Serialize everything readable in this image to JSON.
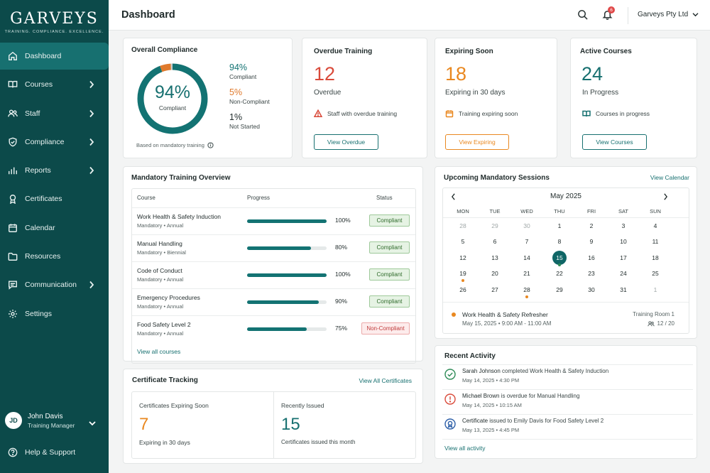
{
  "brand": {
    "name": "GARVEYS",
    "tagline": "TRAINING. COMPLIANCE. EXCELLENCE."
  },
  "nav": [
    {
      "label": "Dashboard",
      "icon": "home-icon",
      "active": true,
      "has_children": false
    },
    {
      "label": "Courses",
      "icon": "book-icon",
      "active": false,
      "has_children": true
    },
    {
      "label": "Staff",
      "icon": "users-icon",
      "active": false,
      "has_children": true
    },
    {
      "label": "Compliance",
      "icon": "shield-icon",
      "active": false,
      "has_children": true
    },
    {
      "label": "Reports",
      "icon": "bar-chart-icon",
      "active": false,
      "has_children": true
    },
    {
      "label": "Certificates",
      "icon": "award-icon",
      "active": false,
      "has_children": false
    },
    {
      "label": "Calendar",
      "icon": "calendar-icon",
      "active": false,
      "has_children": false
    },
    {
      "label": "Resources",
      "icon": "folder-icon",
      "active": false,
      "has_children": false
    },
    {
      "label": "Communication",
      "icon": "message-icon",
      "active": false,
      "has_children": true
    },
    {
      "label": "Settings",
      "icon": "gear-icon",
      "active": false,
      "has_children": false
    }
  ],
  "user": {
    "initials": "JD",
    "name": "John Davis",
    "role": "Training Manager"
  },
  "help_label": "Help & Support",
  "header": {
    "title": "Dashboard",
    "notification_count": "6",
    "company": "Garveys Pty Ltd"
  },
  "compliance": {
    "title": "Overall Compliance",
    "center_value": "94%",
    "center_label": "Compliant",
    "compliant_fraction": 0.94,
    "noncompliant_fraction": 0.05,
    "notstarted_fraction": 0.01,
    "legend": [
      {
        "value": "94%",
        "label": "Compliant",
        "color": "#137373"
      },
      {
        "value": "5%",
        "label": "Non-Compliant",
        "color": "#e07a2c"
      },
      {
        "value": "1%",
        "label": "Not Started",
        "color": "#1f2a2a"
      }
    ],
    "footnote": "Based on mandatory training"
  },
  "stats": [
    {
      "title": "Overdue Training",
      "value": "12",
      "label": "Overdue",
      "note": "Staff with overdue training",
      "note_icon": "warning-icon",
      "button": "View Overdue",
      "color": "#d94a3a"
    },
    {
      "title": "Expiring Soon",
      "value": "18",
      "label": "Expiring in 30 days",
      "note": "Training expiring soon",
      "note_icon": "calendar-icon",
      "button": "View Expiring",
      "color": "#e98820"
    },
    {
      "title": "Active Courses",
      "value": "24",
      "label": "In Progress",
      "note": "Courses in progress",
      "note_icon": "book-icon",
      "button": "View Courses",
      "color": "#177070"
    }
  ],
  "training": {
    "title": "Mandatory Training Overview",
    "columns": [
      "Course",
      "Progress",
      "Status"
    ],
    "rows": [
      {
        "name": "Work Health & Safety Induction",
        "sub": "Mandatory • Annual",
        "progress": 100,
        "pct_label": "100%",
        "status": "Compliant",
        "ok": true
      },
      {
        "name": "Manual Handling",
        "sub": "Mandatory • Biennial",
        "progress": 80,
        "pct_label": "80%",
        "status": "Compliant",
        "ok": true
      },
      {
        "name": "Code of Conduct",
        "sub": "Mandatory • Annual",
        "progress": 100,
        "pct_label": "100%",
        "status": "Compliant",
        "ok": true
      },
      {
        "name": "Emergency Procedures",
        "sub": "Mandatory • Annual",
        "progress": 90,
        "pct_label": "90%",
        "status": "Compliant",
        "ok": true
      },
      {
        "name": "Food Safety Level 2",
        "sub": "Mandatory • Annual",
        "progress": 75,
        "pct_label": "75%",
        "status": "Non-Compliant",
        "ok": false
      }
    ],
    "view_all": "View all courses"
  },
  "certificates": {
    "title": "Certificate Tracking",
    "view_all": "View All Certificates",
    "expiring": {
      "title": "Certificates Expiring Soon",
      "value": "7",
      "label": "Expiring in 30 days"
    },
    "issued": {
      "title": "Recently Issued",
      "value": "15",
      "label": "Certificates issued this month"
    }
  },
  "sessions": {
    "title": "Upcoming Mandatory Sessions",
    "view_calendar": "View Calendar",
    "month": "May 2025",
    "weekdays": [
      "MON",
      "TUE",
      "WED",
      "THU",
      "FRI",
      "SAT",
      "SUN"
    ],
    "weeks": [
      [
        {
          "d": "28",
          "muted": true
        },
        {
          "d": "29",
          "muted": true
        },
        {
          "d": "30",
          "muted": true
        },
        {
          "d": "1"
        },
        {
          "d": "2"
        },
        {
          "d": "3"
        },
        {
          "d": "4"
        }
      ],
      [
        {
          "d": "5"
        },
        {
          "d": "6"
        },
        {
          "d": "7"
        },
        {
          "d": "8"
        },
        {
          "d": "9"
        },
        {
          "d": "10"
        },
        {
          "d": "11"
        }
      ],
      [
        {
          "d": "12"
        },
        {
          "d": "13"
        },
        {
          "d": "14"
        },
        {
          "d": "15",
          "today": true,
          "dot": "#2e8b57"
        },
        {
          "d": "16"
        },
        {
          "d": "17"
        },
        {
          "d": "18"
        }
      ],
      [
        {
          "d": "19",
          "dot": "#e98820"
        },
        {
          "d": "20"
        },
        {
          "d": "21"
        },
        {
          "d": "22"
        },
        {
          "d": "23"
        },
        {
          "d": "24"
        },
        {
          "d": "25"
        }
      ],
      [
        {
          "d": "26"
        },
        {
          "d": "27"
        },
        {
          "d": "28",
          "dot": "#e98820"
        },
        {
          "d": "29"
        },
        {
          "d": "30"
        },
        {
          "d": "31"
        },
        {
          "d": "1",
          "muted": true
        }
      ]
    ],
    "event": {
      "title": "Work Health & Safety Refresher",
      "time": "May 15, 2025 • 9:00 AM - 11:00 AM",
      "room": "Training Room 1",
      "capacity": "12 / 20"
    }
  },
  "activity": {
    "title": "Recent Activity",
    "items": [
      {
        "who": "Sarah Johnson",
        "text": " completed Work Health & Safety Induction",
        "time": "May 14, 2025 • 4:30 PM",
        "icon": "check-circle-icon",
        "color": "#2e8b57"
      },
      {
        "who": "Michael Brown",
        "text": " is overdue for Manual Handling",
        "time": "May 14, 2025 • 10:15 AM",
        "icon": "alert-circle-icon",
        "color": "#d94a3a"
      },
      {
        "who": "Certificate",
        "text": " issued to Emily Davis for Food Safety Level 2",
        "time": "May 13, 2025 • 4:45 PM",
        "icon": "certificate-icon",
        "color": "#2d5fa8"
      }
    ],
    "view_all": "View all activity"
  }
}
